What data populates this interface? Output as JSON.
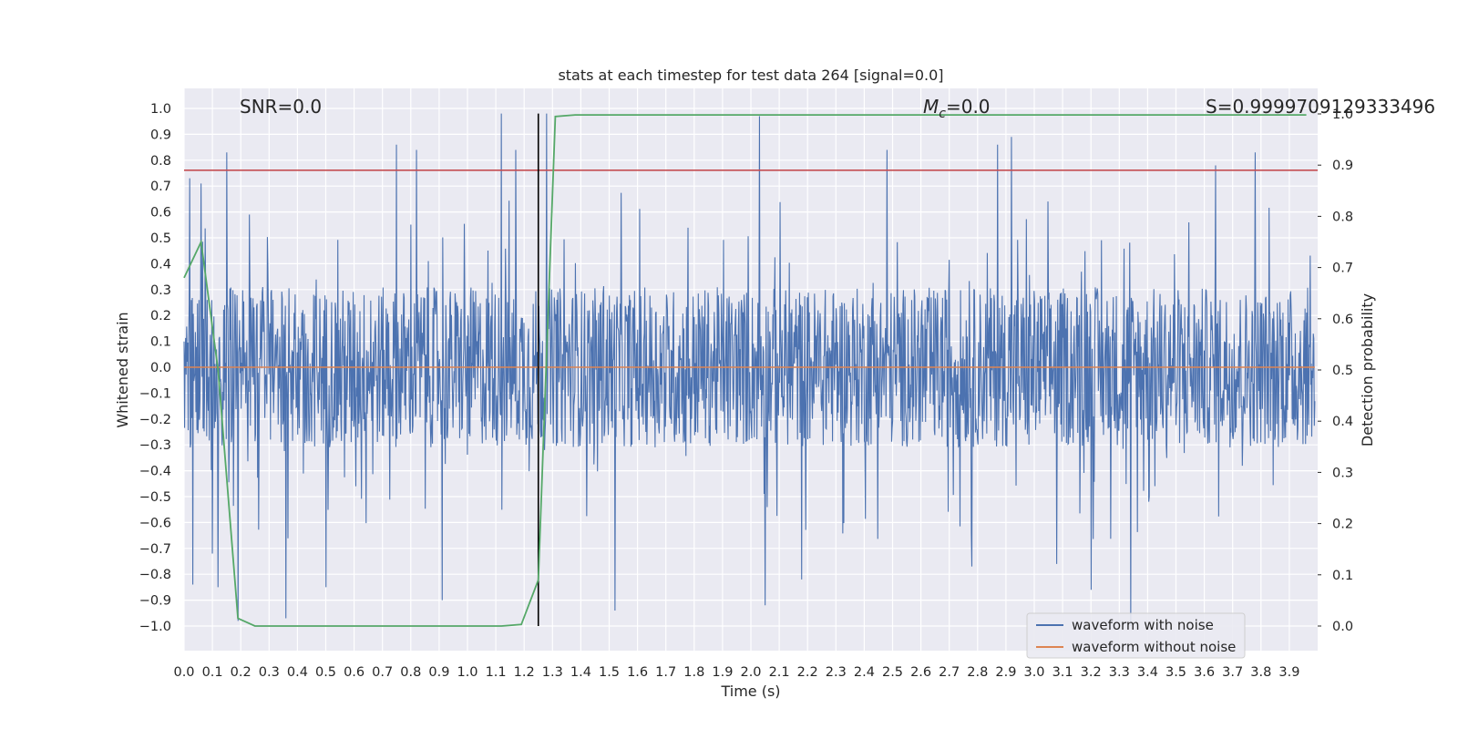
{
  "chart_data": {
    "type": "line",
    "title": "stats at each timestep for test data 264 [signal=0.0]",
    "xlabel": "Time (s)",
    "ylabel": "Whitened strain",
    "y2label": "Detection probability",
    "xlim": [
      0.0,
      3.99
    ],
    "ylim": [
      -1.1,
      1.1
    ],
    "y2lim": [
      -0.05,
      1.05
    ],
    "grid": true,
    "legend_position": "lower-right",
    "annotations": {
      "snr": "SNR=0.0",
      "mc_symbol": "M",
      "mc_sub": "c",
      "mc_value": "=0.0",
      "s": "S=0.9999709129333496"
    },
    "xticks": [
      "0.0",
      "0.1",
      "0.2",
      "0.3",
      "0.4",
      "0.5",
      "0.6",
      "0.7",
      "0.8",
      "0.9",
      "1.0",
      "1.1",
      "1.2",
      "1.3",
      "1.4",
      "1.5",
      "1.6",
      "1.7",
      "1.8",
      "1.9",
      "2.0",
      "2.1",
      "2.2",
      "2.3",
      "2.4",
      "2.5",
      "2.6",
      "2.7",
      "2.8",
      "2.9",
      "3.0",
      "3.1",
      "3.2",
      "3.3",
      "3.4",
      "3.5",
      "3.6",
      "3.7",
      "3.8",
      "3.9"
    ],
    "yticks": [
      "1.0",
      "0.9",
      "0.8",
      "0.7",
      "0.6",
      "0.5",
      "0.4",
      "0.3",
      "0.2",
      "0.1",
      "0.0",
      "−0.1",
      "−0.2",
      "−0.3",
      "−0.4",
      "−0.5",
      "−0.6",
      "−0.7",
      "−0.8",
      "−0.9",
      "−1.0"
    ],
    "y2ticks": [
      "1.0",
      "0.9",
      "0.8",
      "0.7",
      "0.6",
      "0.5",
      "0.4",
      "0.3",
      "0.2",
      "0.1",
      "0.0"
    ],
    "series": [
      {
        "name": "waveform with noise",
        "axis": "left",
        "color": "#4c72b0",
        "description_range": [
          -1.0,
          0.98
        ],
        "peaks": [
          [
            0.02,
            0.73
          ],
          [
            0.03,
            -0.84
          ],
          [
            0.06,
            0.71
          ],
          [
            0.1,
            -0.72
          ],
          [
            0.12,
            -0.85
          ],
          [
            0.15,
            0.83
          ],
          [
            0.19,
            -0.98
          ],
          [
            0.23,
            0.59
          ],
          [
            0.36,
            -0.97
          ],
          [
            0.5,
            -0.85
          ],
          [
            0.75,
            0.86
          ],
          [
            0.82,
            0.84
          ],
          [
            0.91,
            -0.9
          ],
          [
            1.12,
            0.98
          ],
          [
            1.17,
            0.84
          ],
          [
            1.28,
            0.98
          ],
          [
            1.52,
            -0.94
          ],
          [
            2.03,
            0.97
          ],
          [
            2.05,
            -0.92
          ],
          [
            2.18,
            -0.82
          ],
          [
            2.48,
            0.84
          ],
          [
            2.78,
            -0.77
          ],
          [
            2.87,
            0.86
          ],
          [
            2.92,
            0.89
          ],
          [
            3.08,
            -0.76
          ],
          [
            3.2,
            -0.86
          ],
          [
            3.34,
            -1.0
          ],
          [
            3.64,
            0.78
          ],
          [
            3.78,
            0.83
          ]
        ]
      },
      {
        "name": "waveform without noise",
        "axis": "left",
        "color": "#dd8452",
        "x": [
          0.0,
          3.99
        ],
        "y": [
          0.0,
          0.0
        ]
      },
      {
        "axis": "right",
        "color": "#55a868",
        "x": [
          0.0,
          0.06,
          0.12,
          0.19,
          0.25,
          0.5,
          1.0,
          1.12,
          1.19,
          1.25,
          1.31,
          1.38,
          1.5,
          2.0,
          3.0,
          3.96
        ],
        "y": [
          0.68,
          0.75,
          0.5,
          0.015,
          0.0,
          0.0,
          0.0,
          0.0,
          0.003,
          0.09,
          0.995,
          0.998,
          0.998,
          0.998,
          0.998,
          0.998
        ]
      }
    ],
    "hlines": [
      {
        "axis": "right",
        "y": 0.89,
        "color": "#c44e52"
      }
    ],
    "vlines": [
      {
        "x": 1.25,
        "color": "#000000",
        "ymin": -1.0,
        "ymax": 0.98
      }
    ]
  }
}
